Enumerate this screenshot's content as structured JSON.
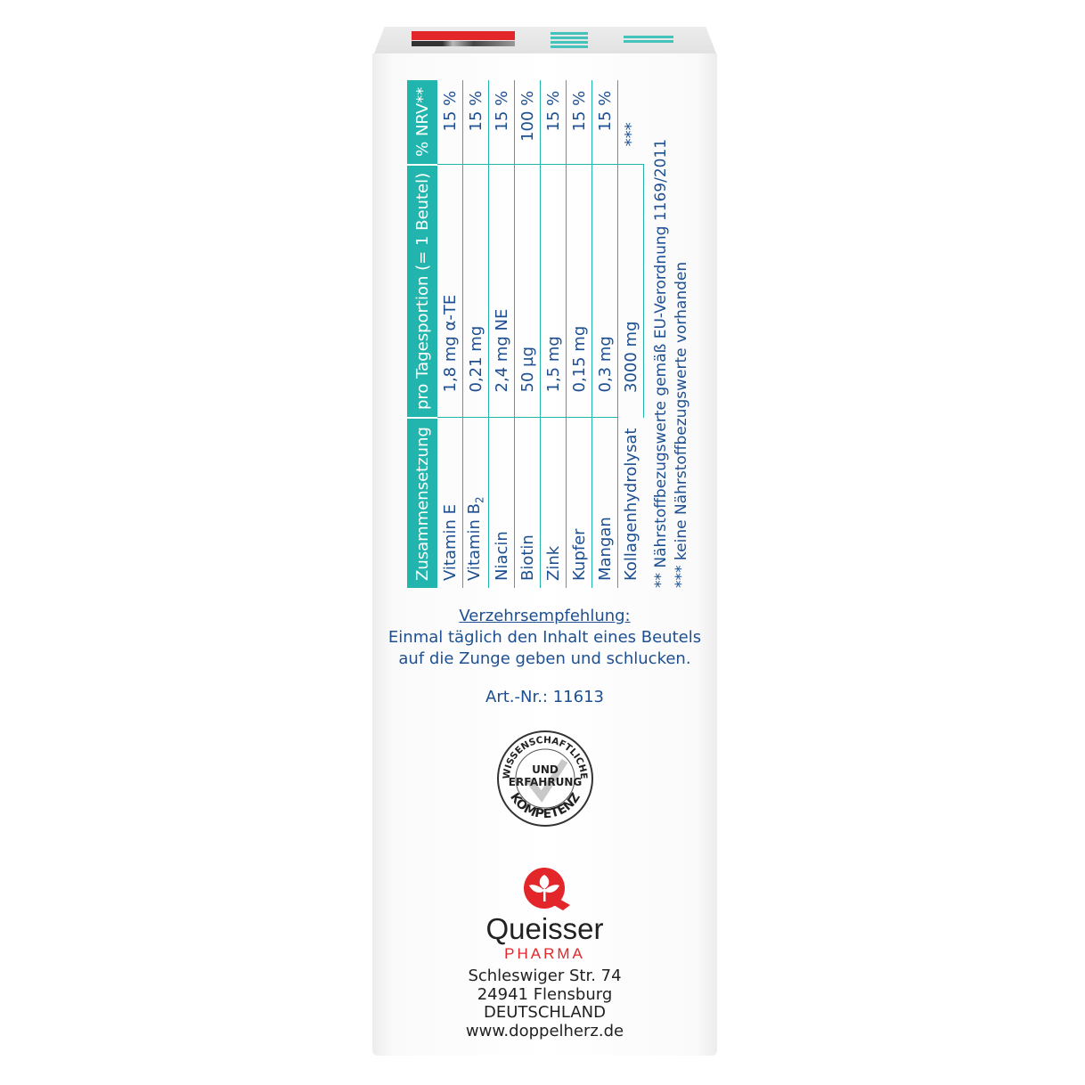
{
  "table": {
    "headers": [
      "Zusammensetzung",
      "pro Tagesportion (= 1 Beutel)",
      "% NRV**"
    ],
    "rows": [
      {
        "name": "Vitamin E",
        "amount": "1,8 mg α-TE",
        "nrv": "15 %"
      },
      {
        "name": "Vitamin B",
        "sub": "2",
        "amount": "0,21 mg",
        "nrv": "15 %"
      },
      {
        "name": "Niacin",
        "amount": "2,4 mg NE",
        "nrv": "15 %"
      },
      {
        "name": "Biotin",
        "amount": "50  µg",
        "nrv": "100 %"
      },
      {
        "name": "Zink",
        "amount": "1,5 mg",
        "nrv": "15 %"
      },
      {
        "name": "Kupfer",
        "amount": "0,15 mg",
        "nrv": "15 %"
      },
      {
        "name": "Mangan",
        "amount": "0,3 mg",
        "nrv": "15 %"
      },
      {
        "name": "Kollagenhydrolysat",
        "amount": "3000 mg",
        "nrv": "***"
      }
    ],
    "footnotes": [
      "**  Nährstoffbezugswerte gemäß EU-Verordnung 1169/2011",
      "*** keine Nährstoffbezugswerte vorhanden"
    ]
  },
  "recommendation": {
    "title": "Verzehrsempfehlung:",
    "line1": "Einmal täglich den Inhalt eines Beutels",
    "line2": "auf die Zunge geben und schlucken."
  },
  "article_number": "Art.-Nr.: 11613",
  "seal": {
    "top": "WISSENSCHAFTLICHE",
    "middle1": "UND",
    "middle2": "ERFAHRUNG",
    "bottom": "KOMPETENZ"
  },
  "brand": {
    "name": "Queisser",
    "sub": "PHARMA",
    "color": "#e3262a"
  },
  "address": [
    "Schleswiger Str. 74",
    "24941 Flensburg",
    "DEUTSCHLAND",
    "www.doppelherz.de"
  ],
  "colors": {
    "teal": "#22b5ad",
    "text_blue": "#1d4f91"
  }
}
